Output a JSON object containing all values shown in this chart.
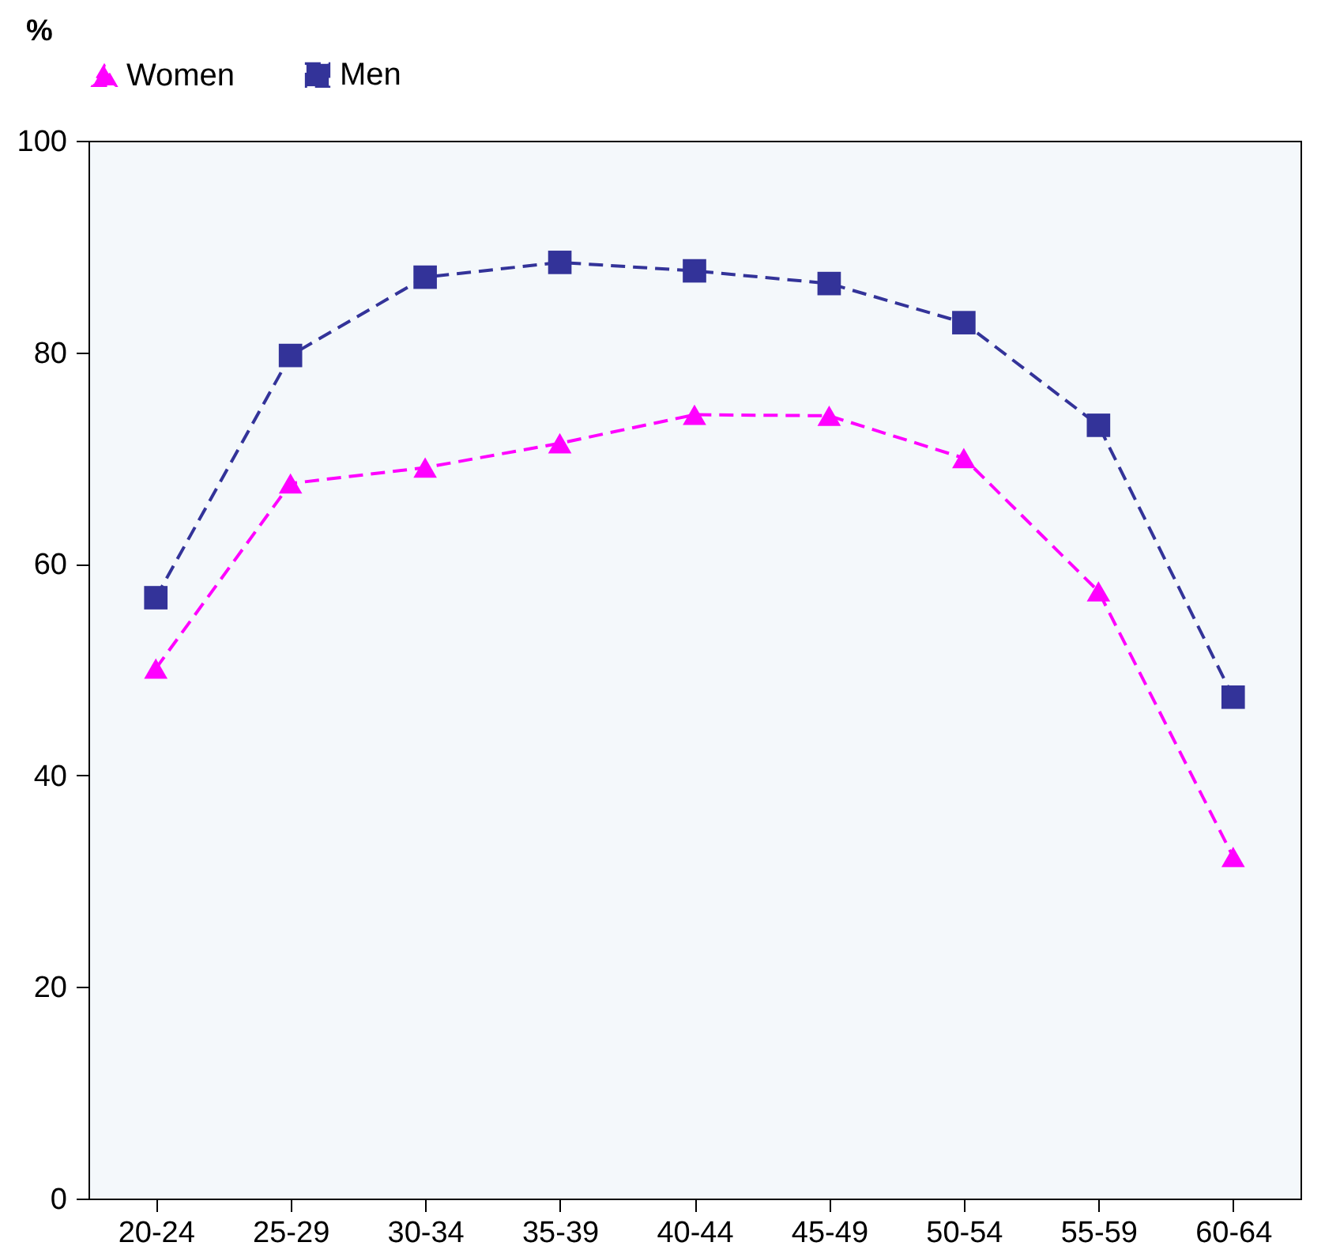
{
  "chart_data": {
    "type": "line",
    "ylabel": "%",
    "categories": [
      "20-24",
      "25-29",
      "30-34",
      "35-39",
      "40-44",
      "45-49",
      "50-54",
      "55-59",
      "60-64"
    ],
    "series": [
      {
        "name": "Women",
        "color": "#ff00ff",
        "marker": "triangle",
        "line_style": "dashed",
        "values": [
          50.1,
          67.6,
          69.1,
          71.4,
          74.1,
          74.0,
          70.0,
          57.4,
          32.3
        ]
      },
      {
        "name": "Men",
        "color": "#333399",
        "marker": "square",
        "line_style": "dashed",
        "values": [
          56.8,
          79.7,
          87.1,
          88.5,
          87.7,
          86.5,
          82.8,
          73.1,
          47.4
        ]
      }
    ],
    "ylim": [
      0,
      100
    ],
    "yticks": [
      0,
      20,
      40,
      60,
      80,
      100
    ],
    "grid": false,
    "legend": "top"
  }
}
